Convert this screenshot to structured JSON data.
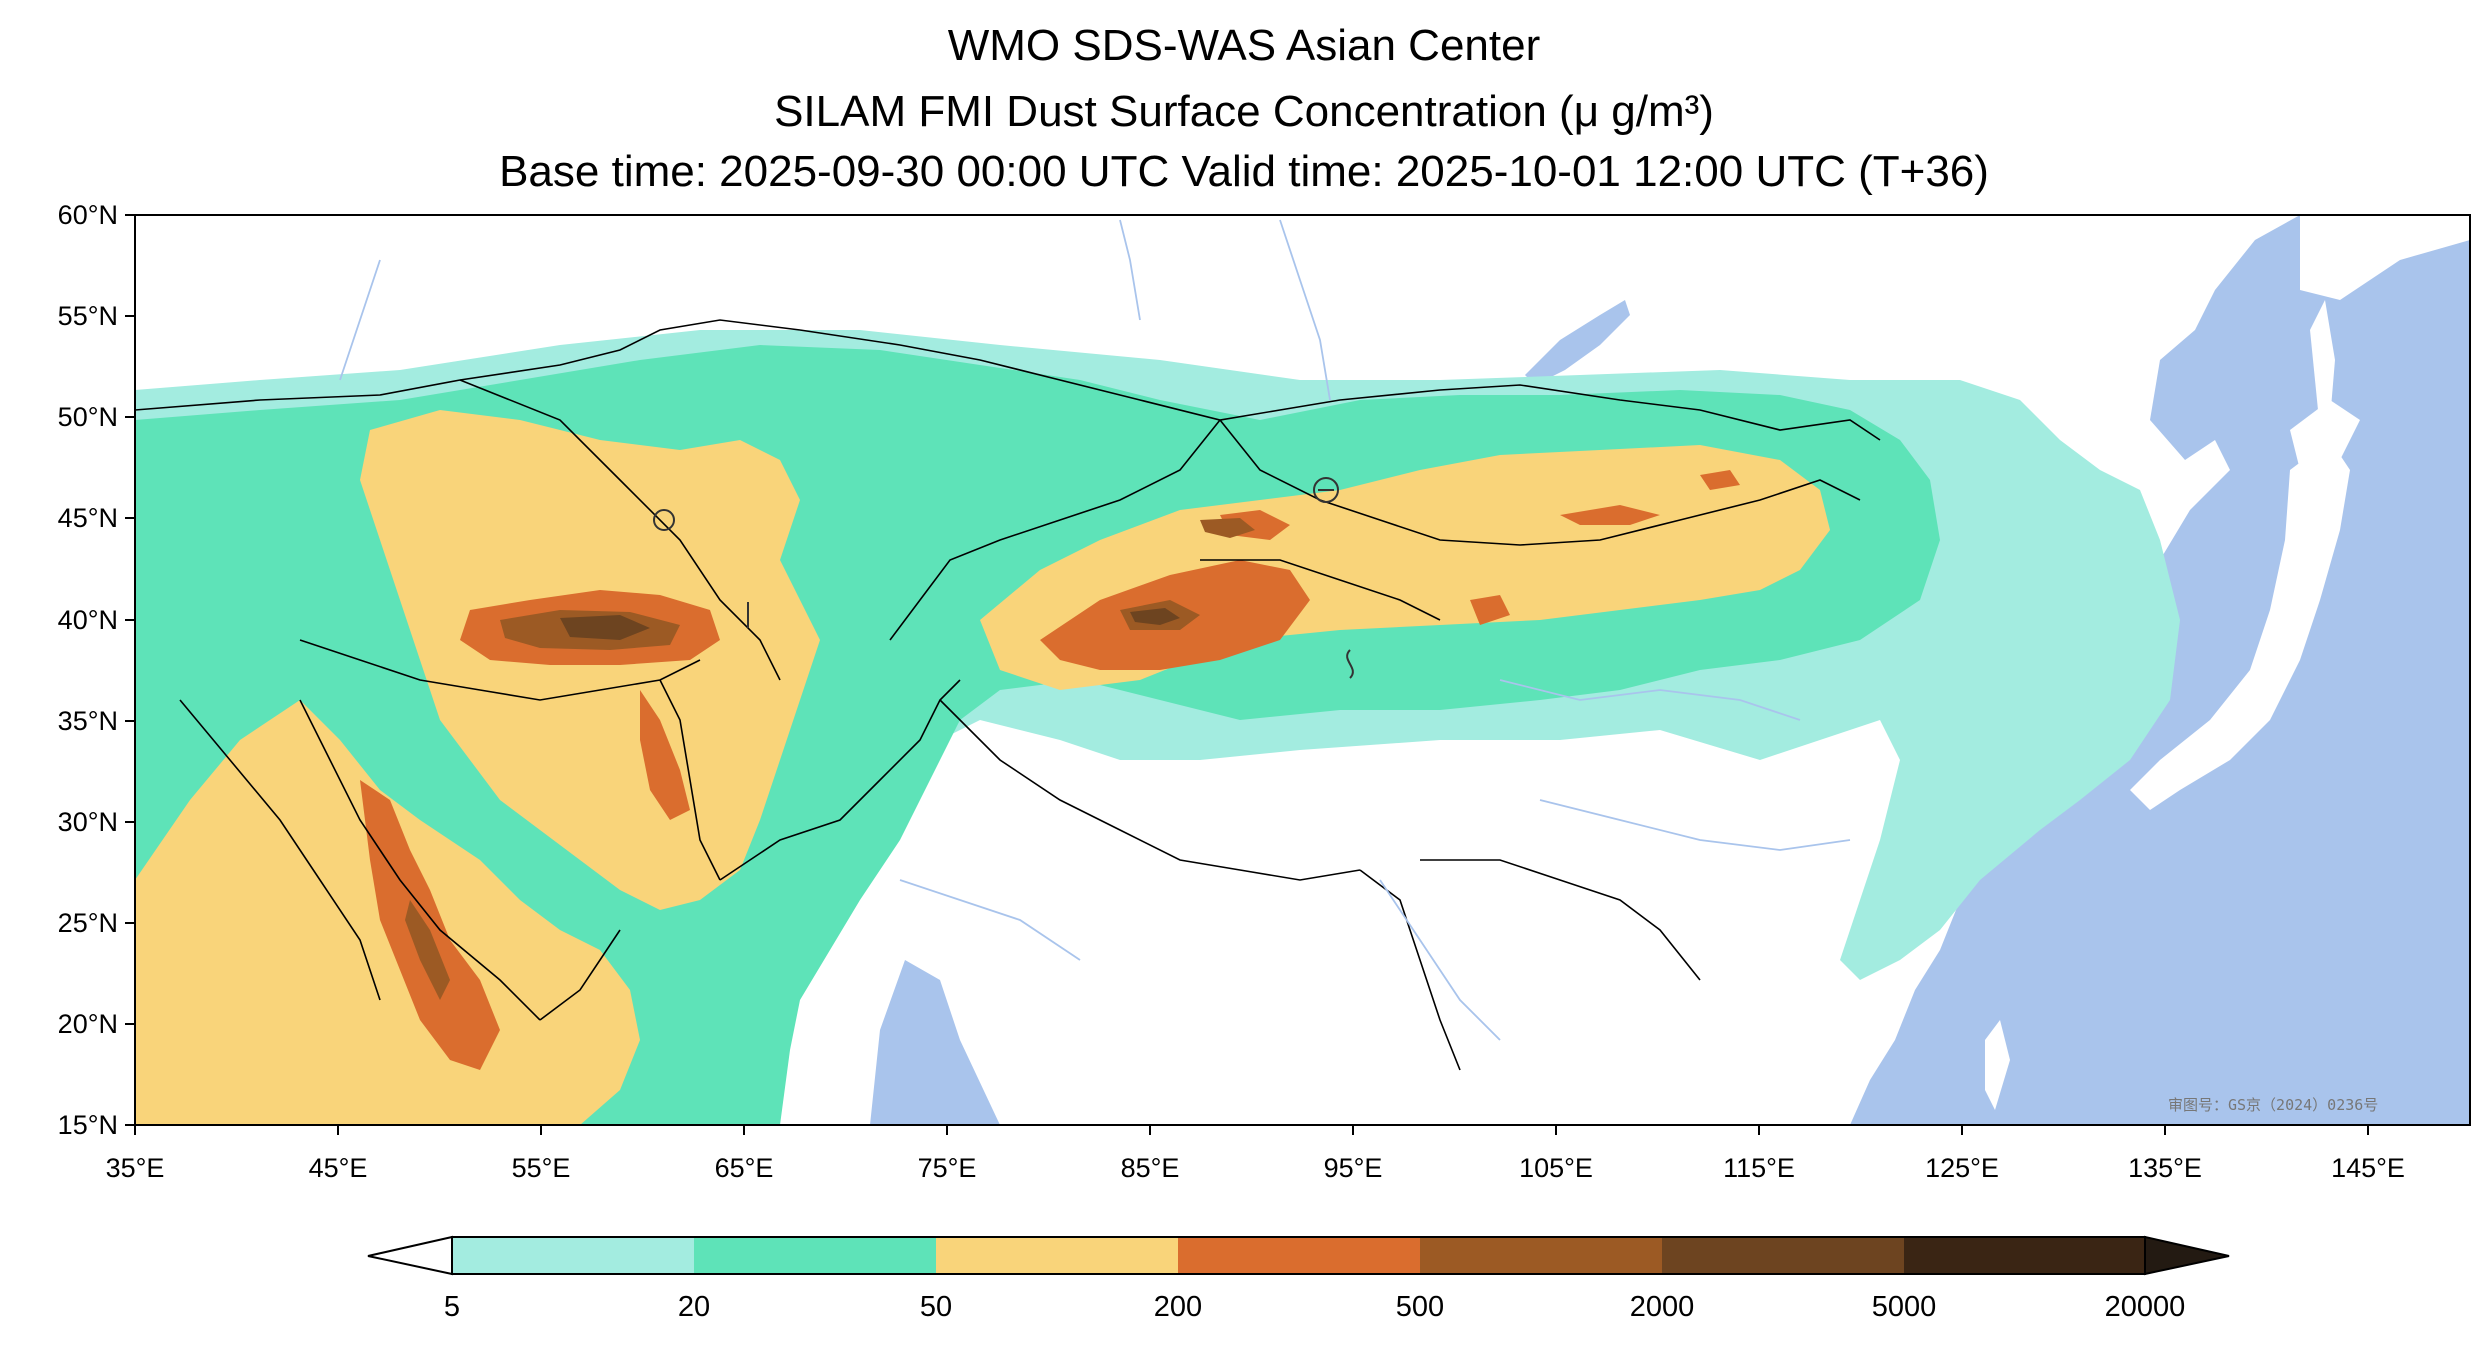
{
  "title": {
    "line1": "WMO SDS-WAS Asian Center",
    "line2": "SILAM FMI Dust Surface Concentration (μ g/m³)",
    "line3": "Base time: 2025-09-30 00:00 UTC Valid time: 2025-10-01 12:00 UTC (T+36)"
  },
  "map": {
    "lon_range": [
      35,
      150
    ],
    "lat_range": [
      15,
      60
    ],
    "lat_ticks": [
      "60°N",
      "55°N",
      "50°N",
      "45°N",
      "40°N",
      "35°N",
      "30°N",
      "25°N",
      "20°N",
      "15°N"
    ],
    "lon_ticks": [
      "35°E",
      "45°E",
      "55°E",
      "65°E",
      "75°E",
      "85°E",
      "95°E",
      "105°E",
      "115°E",
      "125°E",
      "135°E",
      "145°E"
    ],
    "watermark": "审图号：GS京（2024）0236号",
    "colors": {
      "ocean": "#a9c4ec",
      "land": "#ffffff",
      "border": "#000000",
      "river": "#a9c4ec"
    }
  },
  "colorbar": {
    "levels": [
      "5",
      "20",
      "50",
      "200",
      "500",
      "2000",
      "5000",
      "20000"
    ],
    "colors": [
      "#a3ece0",
      "#5ee3b8",
      "#f9d47a",
      "#da6d2e",
      "#9c5a24",
      "#6d4420",
      "#3a2514"
    ],
    "under_color": "#ffffff",
    "over_color": "#231a12"
  }
}
